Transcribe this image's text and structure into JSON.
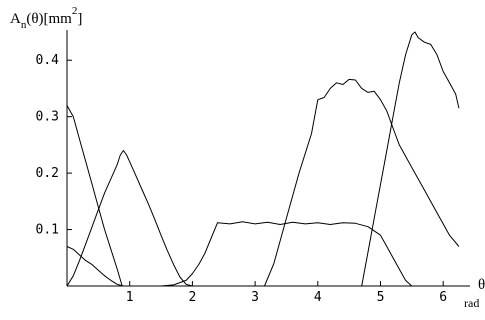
{
  "chart_data": {
    "type": "line",
    "ylabel": {
      "main": "A",
      "subscript": "n",
      "rest_before_sup": "(θ)[mm",
      "superscript": "2",
      "rest_after_sup": "]"
    },
    "xlabel": {
      "symbol": "θ",
      "unit": "rad"
    },
    "xlim": [
      0,
      6.3
    ],
    "ylim": [
      0,
      0.45
    ],
    "x_ticks": [
      {
        "value": 1,
        "label": "1"
      },
      {
        "value": 2,
        "label": "2"
      },
      {
        "value": 3,
        "label": "3"
      },
      {
        "value": 4,
        "label": "4"
      },
      {
        "value": 5,
        "label": "5"
      },
      {
        "value": 6,
        "label": "6"
      }
    ],
    "y_ticks": [
      {
        "value": 0.1,
        "label": "0.1"
      },
      {
        "value": 0.2,
        "label": "0.2"
      },
      {
        "value": 0.3,
        "label": "0.3"
      },
      {
        "value": 0.4,
        "label": "0.4"
      }
    ],
    "grid": false,
    "series": [
      {
        "color": "#000000",
        "points": [
          [
            0,
            0.32
          ],
          [
            0.1,
            0.3
          ],
          [
            0.2,
            0.26
          ],
          [
            0.3,
            0.22
          ],
          [
            0.4,
            0.18
          ],
          [
            0.5,
            0.14
          ],
          [
            0.6,
            0.1
          ],
          [
            0.7,
            0.065
          ],
          [
            0.8,
            0.03
          ],
          [
            0.88,
            0.0
          ],
          [
            6.3,
            0.0
          ]
        ]
      },
      {
        "color": "#000000",
        "points": [
          [
            0,
            0.07
          ],
          [
            0.1,
            0.065
          ],
          [
            0.2,
            0.055
          ],
          [
            0.3,
            0.045
          ],
          [
            0.4,
            0.038
          ],
          [
            0.5,
            0.028
          ],
          [
            0.6,
            0.018
          ],
          [
            0.7,
            0.01
          ],
          [
            0.8,
            0.003
          ],
          [
            0.9,
            0.0
          ],
          [
            6.3,
            0.0
          ]
        ]
      },
      {
        "color": "#000000",
        "points": [
          [
            0,
            0.0
          ],
          [
            0.1,
            0.018
          ],
          [
            0.2,
            0.045
          ],
          [
            0.3,
            0.075
          ],
          [
            0.4,
            0.105
          ],
          [
            0.5,
            0.135
          ],
          [
            0.6,
            0.165
          ],
          [
            0.7,
            0.19
          ],
          [
            0.8,
            0.215
          ],
          [
            0.85,
            0.232
          ],
          [
            0.9,
            0.24
          ],
          [
            0.95,
            0.232
          ],
          [
            1.0,
            0.22
          ],
          [
            1.1,
            0.195
          ],
          [
            1.2,
            0.17
          ],
          [
            1.3,
            0.145
          ],
          [
            1.4,
            0.118
          ],
          [
            1.5,
            0.09
          ],
          [
            1.6,
            0.063
          ],
          [
            1.7,
            0.038
          ],
          [
            1.8,
            0.016
          ],
          [
            1.9,
            0.003
          ],
          [
            2.0,
            0.0
          ],
          [
            6.3,
            0.0
          ]
        ]
      },
      {
        "color": "#000000",
        "points": [
          [
            0,
            0.0
          ],
          [
            1.5,
            0.0
          ],
          [
            1.7,
            0.002
          ],
          [
            1.9,
            0.01
          ],
          [
            2.0,
            0.022
          ],
          [
            2.1,
            0.038
          ],
          [
            2.2,
            0.058
          ],
          [
            2.3,
            0.085
          ],
          [
            2.4,
            0.112
          ],
          [
            2.6,
            0.11
          ],
          [
            2.8,
            0.114
          ],
          [
            3.0,
            0.11
          ],
          [
            3.2,
            0.113
          ],
          [
            3.4,
            0.109
          ],
          [
            3.6,
            0.113
          ],
          [
            3.8,
            0.11
          ],
          [
            4.0,
            0.112
          ],
          [
            4.2,
            0.109
          ],
          [
            4.4,
            0.112
          ],
          [
            4.6,
            0.111
          ],
          [
            4.8,
            0.105
          ],
          [
            5.0,
            0.09
          ],
          [
            5.1,
            0.07
          ],
          [
            5.2,
            0.05
          ],
          [
            5.3,
            0.03
          ],
          [
            5.4,
            0.01
          ],
          [
            5.5,
            0.0
          ],
          [
            6.3,
            0.0
          ]
        ]
      },
      {
        "color": "#000000",
        "points": [
          [
            0,
            0.0
          ],
          [
            3.15,
            0.0
          ],
          [
            3.3,
            0.04
          ],
          [
            3.5,
            0.12
          ],
          [
            3.7,
            0.2
          ],
          [
            3.9,
            0.27
          ],
          [
            4.0,
            0.33
          ],
          [
            4.1,
            0.334
          ],
          [
            4.2,
            0.35
          ],
          [
            4.3,
            0.36
          ],
          [
            4.4,
            0.357
          ],
          [
            4.5,
            0.366
          ],
          [
            4.6,
            0.365
          ],
          [
            4.7,
            0.35
          ],
          [
            4.8,
            0.343
          ],
          [
            4.9,
            0.345
          ],
          [
            5.0,
            0.33
          ],
          [
            5.1,
            0.31
          ],
          [
            5.2,
            0.28
          ],
          [
            5.3,
            0.25
          ],
          [
            5.5,
            0.21
          ],
          [
            5.7,
            0.17
          ],
          [
            5.9,
            0.13
          ],
          [
            6.1,
            0.09
          ],
          [
            6.25,
            0.07
          ]
        ]
      },
      {
        "color": "#000000",
        "points": [
          [
            0,
            0.0
          ],
          [
            4.7,
            0.0
          ],
          [
            4.8,
            0.06
          ],
          [
            4.9,
            0.12
          ],
          [
            5.0,
            0.18
          ],
          [
            5.1,
            0.24
          ],
          [
            5.2,
            0.3
          ],
          [
            5.3,
            0.36
          ],
          [
            5.4,
            0.41
          ],
          [
            5.5,
            0.445
          ],
          [
            5.55,
            0.45
          ],
          [
            5.6,
            0.44
          ],
          [
            5.7,
            0.432
          ],
          [
            5.8,
            0.428
          ],
          [
            5.9,
            0.41
          ],
          [
            6.0,
            0.38
          ],
          [
            6.1,
            0.36
          ],
          [
            6.2,
            0.34
          ],
          [
            6.25,
            0.315
          ]
        ]
      }
    ]
  }
}
